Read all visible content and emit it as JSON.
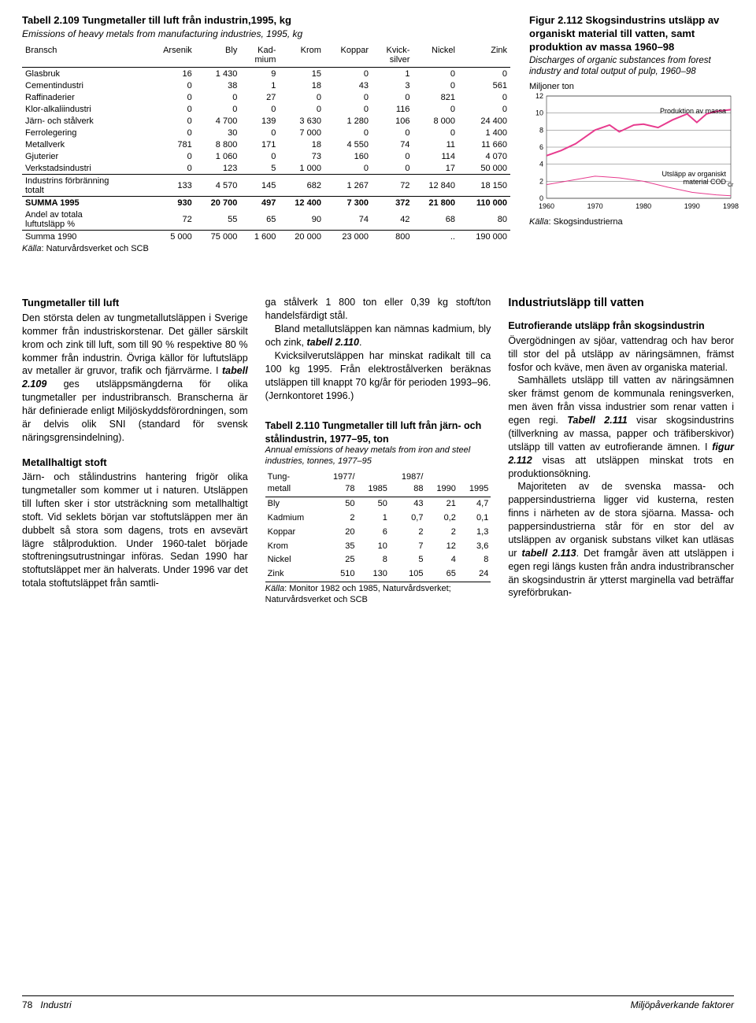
{
  "table109": {
    "title": "Tabell 2.109  Tungmetaller till luft från industrin,1995, kg",
    "subtitle": "Emissions of heavy metals from manufacturing industries, 1995, kg",
    "columns": [
      "Bransch",
      "Arsenik",
      "Bly",
      "Kad-\nmium",
      "Krom",
      "Koppar",
      "Kvick-\nsilver",
      "Nickel",
      "Zink"
    ],
    "rows": [
      [
        "Glasbruk",
        "16",
        "1 430",
        "9",
        "15",
        "0",
        "1",
        "0",
        "0"
      ],
      [
        "Cementindustri",
        "0",
        "38",
        "1",
        "18",
        "43",
        "3",
        "0",
        "561"
      ],
      [
        "Raffinaderier",
        "0",
        "0",
        "27",
        "0",
        "0",
        "0",
        "821",
        "0"
      ],
      [
        "Klor-alkaliindustri",
        "0",
        "0",
        "0",
        "0",
        "0",
        "116",
        "0",
        "0"
      ],
      [
        "Järn- och stålverk",
        "0",
        "4 700",
        "139",
        "3 630",
        "1 280",
        "106",
        "8 000",
        "24 400"
      ],
      [
        "Ferrolegering",
        "0",
        "30",
        "0",
        "7 000",
        "0",
        "0",
        "0",
        "1 400"
      ],
      [
        "Metallverk",
        "781",
        "8 800",
        "171",
        "18",
        "4 550",
        "74",
        "11",
        "11 660"
      ],
      [
        "Gjuterier",
        "0",
        "1 060",
        "0",
        "73",
        "160",
        "0",
        "114",
        "4 070"
      ],
      [
        "Verkstadsindustri",
        "0",
        "123",
        "5",
        "1 000",
        "0",
        "0",
        "17",
        "50 000"
      ]
    ],
    "sec2_label": "Industrins förbränning\ntotalt",
    "sec2": [
      "133",
      "4 570",
      "145",
      "682",
      "1 267",
      "72",
      "12 840",
      "18 150"
    ],
    "summa95_label": "SUMMA 1995",
    "summa95": [
      "930",
      "20 700",
      "497",
      "12 400",
      "7 300",
      "372",
      "21 800",
      "110 000"
    ],
    "andel_label": "Andel av totala\nluftutsläpp %",
    "andel": [
      "72",
      "55",
      "65",
      "90",
      "74",
      "42",
      "68",
      "80"
    ],
    "summa90_label": "Summa 1990",
    "summa90": [
      "5 000",
      "75 000",
      "1 600",
      "20 000",
      "23 000",
      "800",
      "..",
      "190 000"
    ],
    "source": "Källa: Naturvårdsverket och SCB"
  },
  "figure": {
    "title": "Figur 2.112  Skogsindustrins utsläpp av organiskt material till vatten, samt produktion av massa 1960–98",
    "subtitle": "Discharges of organic substances from forest industry and total output of pulp, 1960–98",
    "unit": "Miljoner ton",
    "ylim": [
      0,
      12
    ],
    "ytick_step": 2,
    "xlim": [
      1960,
      1998
    ],
    "xticks": [
      1960,
      1970,
      1980,
      1990,
      1998
    ],
    "series": {
      "prod": {
        "label": "Produktion av massa",
        "color": "#e73b8e",
        "width": 2,
        "points": [
          [
            1960,
            5.0
          ],
          [
            1963,
            5.6
          ],
          [
            1966,
            6.4
          ],
          [
            1970,
            8.0
          ],
          [
            1973,
            8.6
          ],
          [
            1975,
            7.8
          ],
          [
            1978,
            8.6
          ],
          [
            1980,
            8.7
          ],
          [
            1983,
            8.3
          ],
          [
            1986,
            9.2
          ],
          [
            1989,
            9.9
          ],
          [
            1991,
            8.9
          ],
          [
            1993,
            9.9
          ],
          [
            1995,
            10.2
          ],
          [
            1998,
            10.4
          ]
        ]
      },
      "cod": {
        "label": "Utsläpp av organiskt material CODCr",
        "color": "#e73b8e",
        "width": 1,
        "points": [
          [
            1960,
            1.6
          ],
          [
            1965,
            2.1
          ],
          [
            1970,
            2.6
          ],
          [
            1975,
            2.4
          ],
          [
            1980,
            2.0
          ],
          [
            1985,
            1.3
          ],
          [
            1990,
            0.7
          ],
          [
            1995,
            0.4
          ],
          [
            1998,
            0.3
          ]
        ]
      }
    },
    "grid_color": "#000",
    "bg": "#fff",
    "source": "Källa: Skogsindustrierna"
  },
  "col1": {
    "h1": "Tungmetaller till luft",
    "p1": "Den största delen av tungmetallutsläppen i Sverige kommer från industriskorstenar. Det gäller särskilt krom och zink till luft, som till 90 % respektive 80 % kommer från industrin. Övriga källor för luftutsläpp av metaller är gruvor, trafik och fjärrvärme. I tabell 2.109 ges utsläppsmängderna för olika tungmetaller per industribransch. Branscherna är här definierade enligt Miljöskyddsförordningen, som är delvis olik SNI (standard för svensk näringsgrensindelning).",
    "h2": "Metallhaltigt stoft",
    "p2": "Järn- och stålindustrins hantering frigör olika tungmetaller som kommer ut i naturen. Utsläppen till luften sker i stor utsträckning som metallhaltigt stoft. Vid seklets början var stoftutsläppen mer än dubbelt så stora som dagens, trots en avsevärt lägre stålproduktion. Under 1960-talet började stoftreningsutrustningar införas. Sedan 1990 har stoftutsläppet mer än halverats. Under 1996 var det totala stoftutsläppet från samtli-"
  },
  "col2": {
    "p1": "ga stålverk 1 800 ton eller 0,39 kg stoft/ton handelsfärdigt stål.",
    "p2": "Bland metallutsläppen kan nämnas kadmium, bly och zink, tabell 2.110.",
    "p3": "Kvicksilverutsläppen har minskat radikalt till ca 100 kg 1995. Från elektrostålverken beräknas utsläppen till knappt 70 kg/år för perioden 1993–96. (Jernkontoret 1996.)"
  },
  "table110": {
    "title": "Tabell 2.110  Tungmetaller till luft från järn- och stålindustrin, 1977–95, ton",
    "subtitle": "Annual emissions of heavy metals from iron and steel industries, tonnes, 1977–95",
    "head1": [
      "Tung-\nmetall",
      "1977/\n78",
      "1985",
      "1987/\n88",
      "1990",
      "1995"
    ],
    "rows": [
      [
        "Bly",
        "50",
        "50",
        "43",
        "21",
        "4,7"
      ],
      [
        "Kadmium",
        "2",
        "1",
        "0,7",
        "0,2",
        "0,1"
      ],
      [
        "Koppar",
        "20",
        "6",
        "2",
        "2",
        "1,3"
      ],
      [
        "Krom",
        "35",
        "10",
        "7",
        "12",
        "3,6"
      ],
      [
        "Nickel",
        "25",
        "8",
        "5",
        "4",
        "8"
      ],
      [
        "Zink",
        "510",
        "130",
        "105",
        "65",
        "24"
      ]
    ],
    "source": "Källa: Monitor 1982 och 1985, Naturvårdsverket; Naturvårdsverket och SCB"
  },
  "col3": {
    "h1": "Industriutsläpp till vatten",
    "h2": "Eutrofierande utsläpp från skogsindustrin",
    "p1": "Övergödningen av sjöar, vattendrag och hav beror till stor del på utsläpp av näringsämnen, främst fosfor och kväve, men även av organiska material.",
    "p2": "Samhällets utsläpp till vatten av näringsämnen sker främst genom de kommunala reningsverken, men även från vissa industrier som renar vatten i egen regi. Tabell 2.111 visar skogsindustrins (tillverkning av massa, papper och träfiberskivor) utsläpp till vatten av eutrofierande ämnen. I figur 2.112 visas att utsläppen minskat trots en produktionsökning.",
    "p3": "Majoriteten av de svenska massa- och pappersindustrierna ligger vid kusterna, resten finns i närheten av de stora sjöarna. Massa- och pappersindustrierna står för en stor del av utsläppen av organisk substans vilket kan utläsas ur tabell 2.113. Det framgår även att utsläppen i egen regi längs kusten från andra industribranscher än skogsindustrin är ytterst marginella vad beträffar syreförbrukan-"
  },
  "footer": {
    "left_num": "78",
    "left_txt": "Industri",
    "right": "Miljöpåverkande faktorer"
  }
}
